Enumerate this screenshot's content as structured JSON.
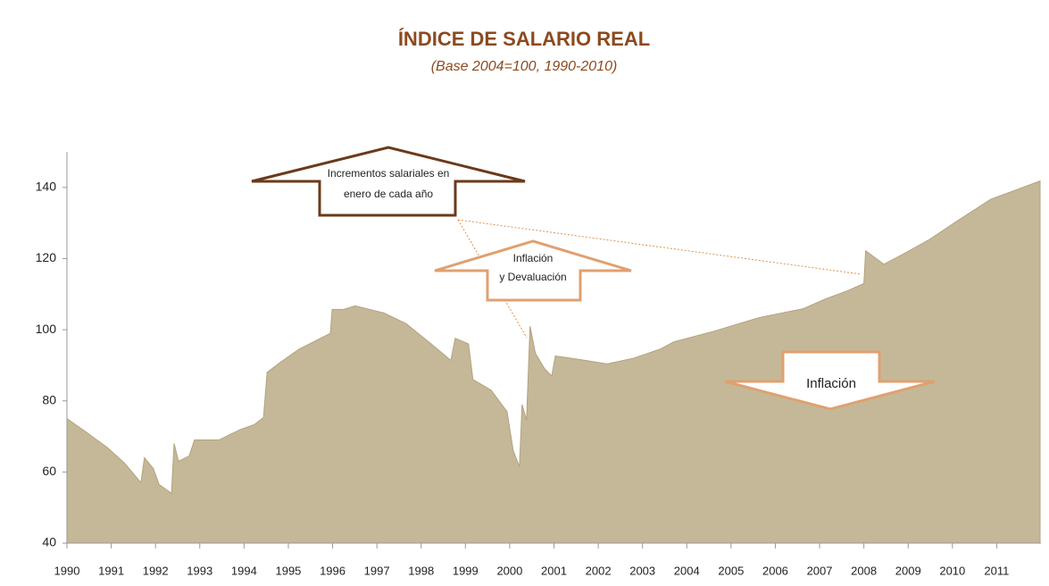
{
  "chart_data": {
    "type": "area",
    "title": "ÍNDICE DE SALARIO REAL",
    "subtitle": "(Base 2004=100, 1990-2010)",
    "color": "#c5b898",
    "line_color": "#b3a27e",
    "xlim": [
      1990,
      2012
    ],
    "xticks": [
      1990,
      1991,
      1992,
      1993,
      1994,
      1995,
      1996,
      1997,
      1998,
      1999,
      2000,
      2001,
      2002,
      2003,
      2004,
      2005,
      2006,
      2007,
      2008,
      2009,
      2010,
      2011
    ],
    "ylim": [
      40,
      150
    ],
    "yticks": [
      40,
      60,
      80,
      100,
      120,
      140
    ],
    "x": [
      1990.0,
      1990.4,
      1990.9,
      1991.3,
      1991.67,
      1991.75,
      1991.95,
      1992.08,
      1992.36,
      1992.42,
      1992.52,
      1992.76,
      1992.88,
      1993.43,
      1993.93,
      1994.23,
      1994.44,
      1994.52,
      1994.84,
      1995.24,
      1995.95,
      1995.99,
      1996.25,
      1996.51,
      1997.16,
      1997.66,
      1998.17,
      1998.67,
      1998.77,
      1999.07,
      1999.17,
      1999.58,
      1999.94,
      2000.08,
      2000.22,
      2000.28,
      2000.38,
      2000.46,
      2000.58,
      2000.79,
      2000.95,
      2001.03,
      2001.59,
      2002.2,
      2002.8,
      2003.41,
      2003.71,
      2004.62,
      2005.63,
      2006.63,
      2007.14,
      2007.64,
      2008.0,
      2008.04,
      2008.45,
      2008.85,
      2009.46,
      2010.16,
      2010.87,
      2011.98
    ],
    "values": [
      75,
      71.5,
      67,
      62.5,
      57,
      64,
      61,
      56.5,
      54,
      68,
      63,
      64.5,
      69,
      69,
      72,
      73.3,
      75.3,
      88,
      91,
      94.5,
      99,
      105.7,
      105.7,
      106.7,
      104.7,
      101.7,
      96.6,
      91.4,
      97.6,
      96,
      86,
      83,
      77,
      66,
      61.5,
      79,
      74.5,
      101,
      93.4,
      89,
      87,
      92.6,
      91.6,
      90.4,
      92,
      94.6,
      96.6,
      99.6,
      103.4,
      105.9,
      108.7,
      111,
      113,
      122.2,
      118.4,
      121,
      125.2,
      131,
      136.7,
      141.8
    ],
    "annotations": [
      [
        "Incrementos salariales en",
        "enero de cada año"
      ],
      [
        "Inflación",
        "y Devaluación"
      ],
      [
        "Inflación"
      ]
    ]
  }
}
